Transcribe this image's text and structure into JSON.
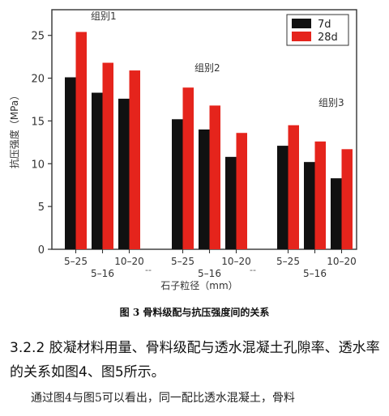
{
  "chart_data": {
    "type": "bar",
    "title": "",
    "ylabel": "抗压强度（MPa）",
    "xlabel": "石子粒径（mm）",
    "ylim": [
      0,
      28
    ],
    "yticks": [
      0,
      5,
      10,
      15,
      20,
      25
    ],
    "legend_position": "top-right",
    "series": [
      {
        "name": "7d",
        "color": "#111111"
      },
      {
        "name": "28d",
        "color": "#e5241c"
      }
    ],
    "groups": [
      {
        "label": "组别1",
        "categories": [
          "5–25",
          "5–16",
          "10–20"
        ],
        "values_7d": [
          20.1,
          18.3,
          17.6
        ],
        "values_28d": [
          25.4,
          21.8,
          20.9
        ]
      },
      {
        "label": "组别2",
        "categories": [
          "5–25",
          "5–16",
          "10–20"
        ],
        "values_7d": [
          15.2,
          14.0,
          10.8
        ],
        "values_28d": [
          18.9,
          16.8,
          13.6
        ]
      },
      {
        "label": "组别3",
        "categories": [
          "5–25",
          "5–16",
          "10–20"
        ],
        "values_7d": [
          12.1,
          10.2,
          8.3
        ],
        "values_28d": [
          14.5,
          12.6,
          11.7
        ]
      }
    ],
    "group_separator": "-- "
  },
  "figure_caption": "图 3    骨料级配与抗压强度间的关系",
  "section": {
    "heading": "3.2.2 胶凝材料用量、骨料级配与透水混凝土孔隙率、透水率的关系如图4、图5所示。",
    "body": "通过图4与图5可以看出，同一配比透水混凝土，骨料"
  }
}
